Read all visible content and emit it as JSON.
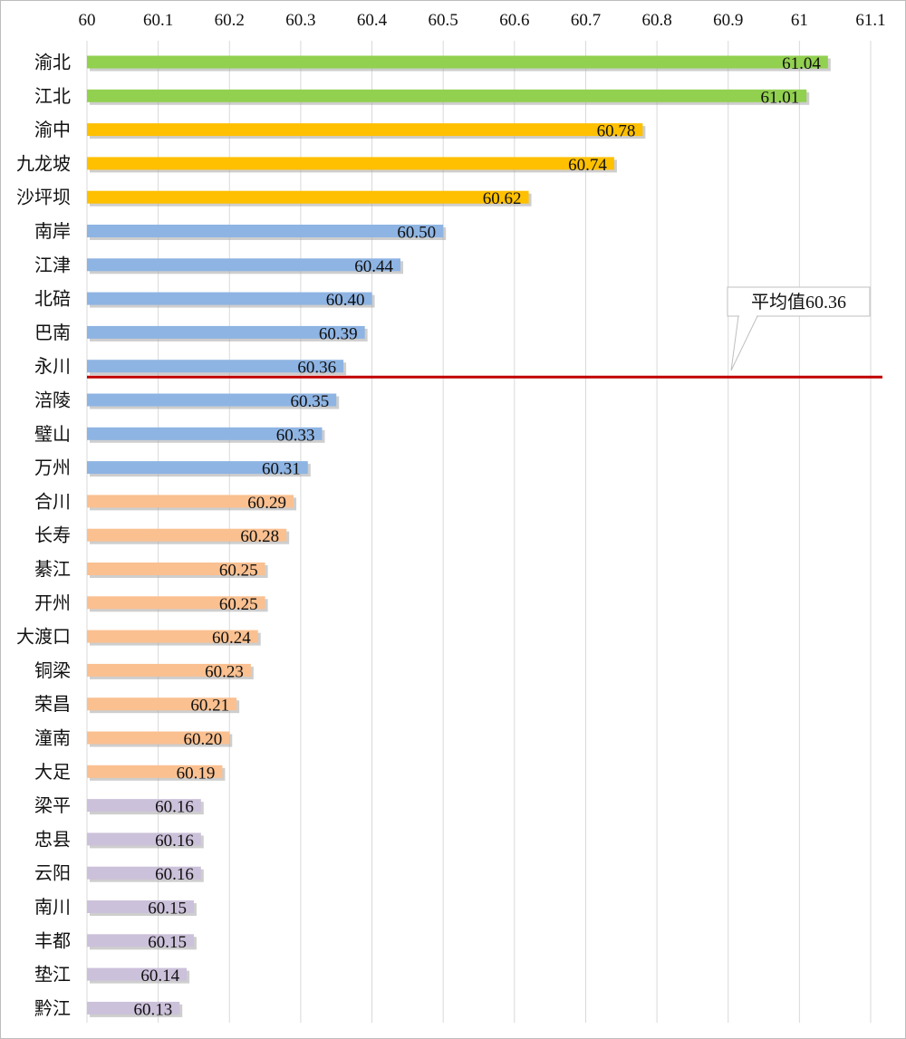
{
  "chart_data": {
    "type": "bar",
    "orientation": "horizontal",
    "title": "",
    "xlabel": "",
    "ylabel": "",
    "xlim": [
      60,
      61.1
    ],
    "x_ticks": [
      "60",
      "60.1",
      "60.2",
      "60.3",
      "60.4",
      "60.5",
      "60.6",
      "60.7",
      "60.8",
      "60.9",
      "61",
      "61.1"
    ],
    "x_axis_position": "top",
    "grid": "vertical",
    "legend": "none",
    "categories": [
      "渝北",
      "江北",
      "渝中",
      "九龙坡",
      "沙坪坝",
      "南岸",
      "江津",
      "北碚",
      "巴南",
      "永川",
      "涪陵",
      "璧山",
      "万州",
      "合川",
      "长寿",
      "綦江",
      "开州",
      "大渡口",
      "铜梁",
      "荣昌",
      "潼南",
      "大足",
      "梁平",
      "忠县",
      "云阳",
      "南川",
      "丰都",
      "垫江",
      "黔江"
    ],
    "values": [
      61.04,
      61.01,
      60.78,
      60.74,
      60.62,
      60.5,
      60.44,
      60.4,
      60.39,
      60.36,
      60.35,
      60.33,
      60.31,
      60.29,
      60.28,
      60.25,
      60.25,
      60.24,
      60.23,
      60.21,
      60.2,
      60.19,
      60.16,
      60.16,
      60.16,
      60.15,
      60.15,
      60.14,
      60.13
    ],
    "value_labels": [
      "61.04",
      "61.01",
      "60.78",
      "60.74",
      "60.62",
      "60.50",
      "60.44",
      "60.40",
      "60.39",
      "60.36",
      "60.35",
      "60.33",
      "60.31",
      "60.29",
      "60.28",
      "60.25",
      "60.25",
      "60.24",
      "60.23",
      "60.21",
      "60.20",
      "60.19",
      "60.16",
      "60.16",
      "60.16",
      "60.15",
      "60.15",
      "60.14",
      "60.13"
    ],
    "bar_groups": [
      "green",
      "green",
      "gold",
      "gold",
      "gold",
      "blue",
      "blue",
      "blue",
      "blue",
      "blue",
      "blue",
      "blue",
      "blue",
      "peach",
      "peach",
      "peach",
      "peach",
      "peach",
      "peach",
      "peach",
      "peach",
      "peach",
      "lavender",
      "lavender",
      "lavender",
      "lavender",
      "lavender",
      "lavender",
      "lavender"
    ],
    "colors": {
      "green": "#92d050",
      "gold": "#ffc000",
      "blue": "#8eb4e3",
      "peach": "#fac090",
      "lavender": "#ccc1da",
      "average_line": "#c00000",
      "grid": "#d9d9d9",
      "bar_shadow": "#a6a6a6"
    },
    "reference_line": {
      "value": 60.36,
      "label": "平均值60.36"
    }
  }
}
